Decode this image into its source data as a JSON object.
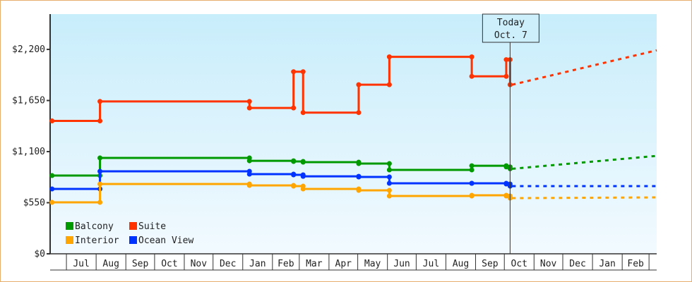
{
  "chart_data": {
    "type": "line",
    "title": "",
    "xlabel": "",
    "ylabel": "",
    "ylim": [
      0,
      2580
    ],
    "xlim": [
      "2012-06-14",
      "2014-03-09"
    ],
    "y_ticks": [
      {
        "value": 0,
        "label": "$0"
      },
      {
        "value": 550,
        "label": "$550"
      },
      {
        "value": 1100,
        "label": "$1,100"
      },
      {
        "value": 1650,
        "label": "$1,650"
      },
      {
        "value": 2200,
        "label": "$2,200"
      }
    ],
    "x_ticks": [
      {
        "date": "2012-07-01",
        "label": "Jul"
      },
      {
        "date": "2012-08-01",
        "label": "Aug"
      },
      {
        "date": "2012-09-01",
        "label": "Sep"
      },
      {
        "date": "2012-10-01",
        "label": "Oct"
      },
      {
        "date": "2012-11-01",
        "label": "Nov"
      },
      {
        "date": "2012-12-01",
        "label": "Dec"
      },
      {
        "date": "2013-01-01",
        "label": "Jan"
      },
      {
        "date": "2013-02-01",
        "label": "Feb"
      },
      {
        "date": "2013-03-01",
        "label": "Mar"
      },
      {
        "date": "2013-04-01",
        "label": "Apr"
      },
      {
        "date": "2013-05-01",
        "label": "May"
      },
      {
        "date": "2013-06-01",
        "label": "Jun"
      },
      {
        "date": "2013-07-01",
        "label": "Jul"
      },
      {
        "date": "2013-08-01",
        "label": "Aug"
      },
      {
        "date": "2013-09-01",
        "label": "Sep"
      },
      {
        "date": "2013-10-01",
        "label": "Oct"
      },
      {
        "date": "2013-11-01",
        "label": "Nov"
      },
      {
        "date": "2013-12-01",
        "label": "Dec"
      },
      {
        "date": "2014-01-01",
        "label": "Jan"
      },
      {
        "date": "2014-02-01",
        "label": "Feb"
      },
      {
        "date": "2014-03-01",
        "label": ""
      }
    ],
    "today": {
      "date": "2013-10-07",
      "line1": "Today",
      "line2": "Oct. 7"
    },
    "grid": false,
    "legend_position": "bottom-left",
    "step": true,
    "series": [
      {
        "name": "Suite",
        "color": "#ff3300",
        "dates": [
          "2012-06-16",
          "2012-08-05",
          "2013-01-08",
          "2013-02-23",
          "2013-03-05",
          "2013-05-02",
          "2013-06-03",
          "2013-08-28",
          "2013-10-03",
          "2013-10-07"
        ],
        "values": [
          1430,
          1640,
          1570,
          1960,
          1520,
          1820,
          2120,
          1910,
          2090,
          1820
        ],
        "forecast": {
          "date": "2014-03-09",
          "value": 2190
        }
      },
      {
        "name": "Balcony",
        "color": "#009900",
        "dates": [
          "2012-06-16",
          "2012-08-05",
          "2013-01-08",
          "2013-02-23",
          "2013-03-05",
          "2013-05-02",
          "2013-06-03",
          "2013-08-28",
          "2013-10-03",
          "2013-10-07"
        ],
        "values": [
          842,
          1032,
          1001,
          994,
          986,
          971,
          903,
          948,
          935,
          915
        ],
        "forecast": {
          "date": "2014-03-09",
          "value": 1054
        }
      },
      {
        "name": "Ocean View",
        "color": "#0033ff",
        "dates": [
          "2012-06-16",
          "2012-08-05",
          "2013-01-08",
          "2013-02-23",
          "2013-03-05",
          "2013-05-02",
          "2013-06-03",
          "2013-08-28",
          "2013-10-03",
          "2013-10-07"
        ],
        "values": [
          698,
          888,
          857,
          850,
          834,
          827,
          759,
          759,
          751,
          728
        ],
        "forecast": {
          "date": "2014-03-09",
          "value": 728
        }
      },
      {
        "name": "Interior",
        "color": "#ffa500",
        "dates": [
          "2012-06-16",
          "2012-08-05",
          "2013-01-08",
          "2013-02-23",
          "2013-03-05",
          "2013-05-02",
          "2013-06-03",
          "2013-08-28",
          "2013-10-03",
          "2013-10-07"
        ],
        "values": [
          554,
          751,
          736,
          728,
          698,
          683,
          622,
          630,
          622,
          599
        ],
        "forecast": {
          "date": "2014-03-09",
          "value": 607
        }
      }
    ],
    "legend": [
      {
        "name": "Balcony",
        "color": "#009900"
      },
      {
        "name": "Suite",
        "color": "#ff3300"
      },
      {
        "name": "Interior",
        "color": "#ffa500"
      },
      {
        "name": "Ocean View",
        "color": "#0033ff"
      }
    ]
  }
}
